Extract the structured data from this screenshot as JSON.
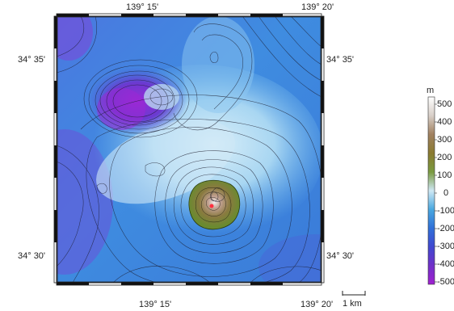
{
  "map": {
    "lon_labels_top": [
      "139° 15'",
      "139° 20'"
    ],
    "lon_labels_bottom": [
      "139° 15'",
      "139° 20'"
    ],
    "lat_labels_left": [
      "34° 35'",
      "34° 30'"
    ],
    "lat_labels_right": [
      "34° 35'",
      "34° 30'"
    ],
    "scale_bar_label": "1 km"
  },
  "colorbar": {
    "unit": "m",
    "ticks": [
      "500",
      "400",
      "300",
      "200",
      "100",
      "0",
      "-100",
      "-200",
      "-300",
      "-400",
      "-500"
    ],
    "colors": [
      "#ffffff",
      "#d8cfc8",
      "#a08060",
      "#8a7a30",
      "#7a9a40",
      "#cfe8f4",
      "#4aa8e0",
      "#3070d8",
      "#4048d0",
      "#7030c8",
      "#a020d0"
    ]
  }
}
